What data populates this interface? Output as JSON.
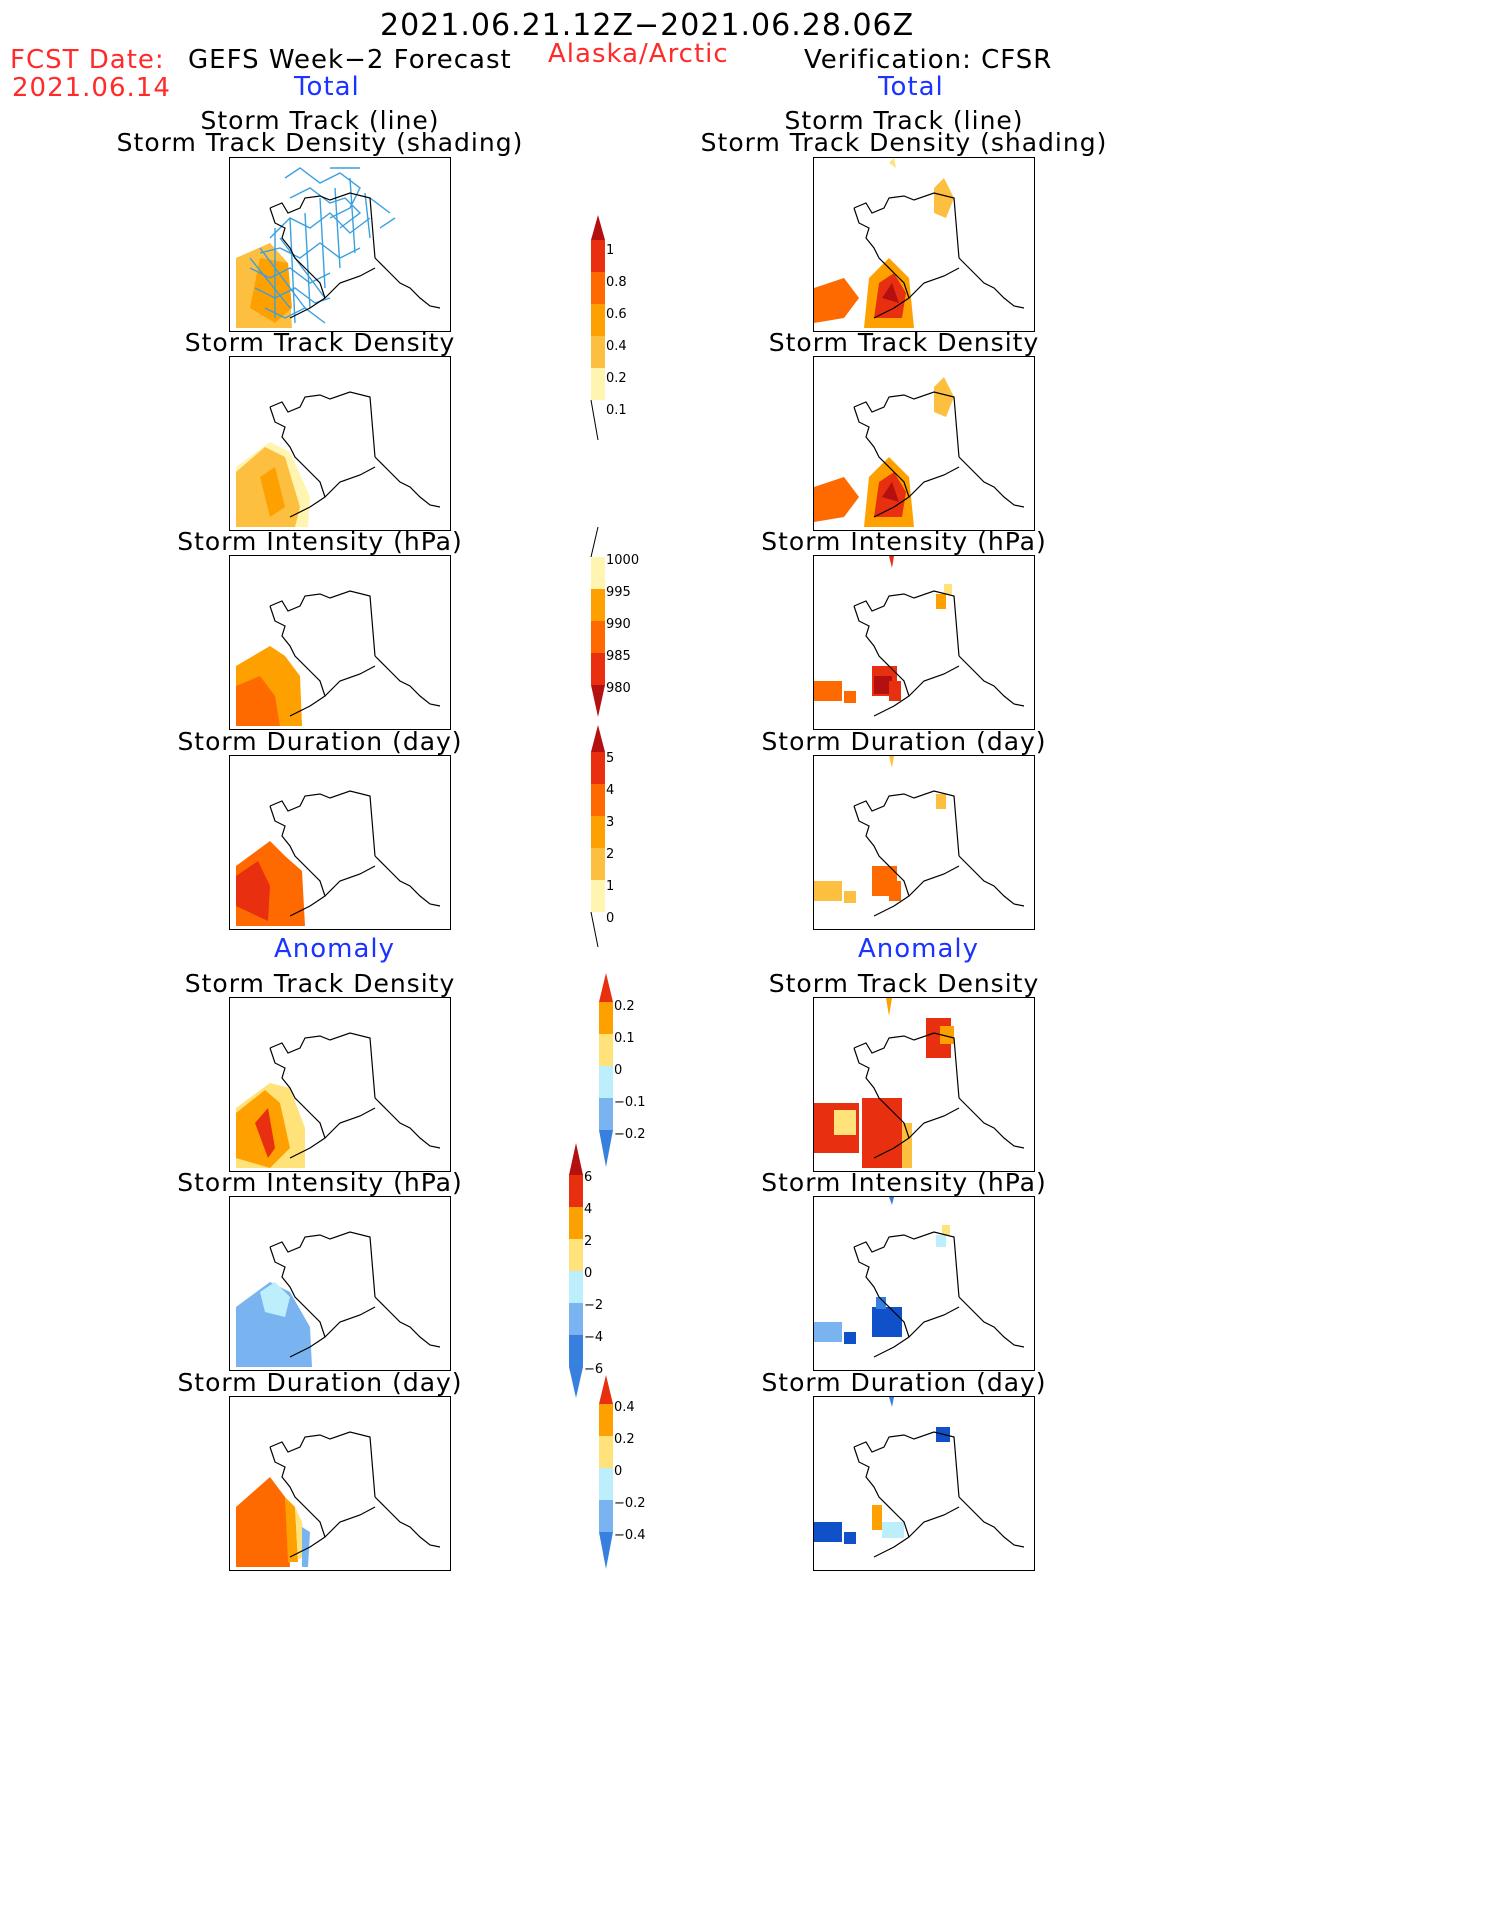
{
  "header": {
    "date_range": "2021.06.21.12Z−2021.06.28.06Z",
    "fcst_label": "FCST Date:",
    "fcst_date": "2021.06.14",
    "left_title": "GEFS Week−2 Forecast",
    "region": "Alaska/Arctic",
    "right_title": "Verification: CFSR",
    "total_label": "Total",
    "anomaly_label": "Anomaly"
  },
  "panel_titles": {
    "track_line": "Storm Track (line)",
    "track_density_shading": "Storm Track Density (shading)",
    "track_density": "Storm Track Density",
    "intensity": "Storm Intensity (hPa)",
    "duration": "Storm Duration (day)"
  },
  "colorbars": {
    "density_total": [
      "1",
      "0.8",
      "0.6",
      "0.4",
      "0.2",
      "0.1"
    ],
    "intensity_total": [
      "1000",
      "995",
      "990",
      "985",
      "980"
    ],
    "duration_total": [
      "5",
      "4",
      "3",
      "2",
      "1",
      "0"
    ],
    "density_anom": [
      "0.2",
      "0.1",
      "0",
      "−0.1",
      "−0.2"
    ],
    "intensity_anom": [
      "6",
      "4",
      "2",
      "0",
      "−2",
      "−4",
      "−6"
    ],
    "duration_anom": [
      "0.4",
      "0.2",
      "0",
      "−0.2",
      "−0.4"
    ]
  },
  "colors": {
    "yellow_light": "#fff5b0",
    "yellow": "#ffe27a",
    "orange_light": "#fdbf3f",
    "orange": "#fda000",
    "orange_red": "#ff6a00",
    "red": "#e83010",
    "dark_red": "#b51010",
    "track_line": "#3aa0e0",
    "blue_light": "#bdeefb",
    "blue_mid": "#7ab4f0",
    "blue": "#3880e0",
    "blue_dark": "#1050c8"
  }
}
